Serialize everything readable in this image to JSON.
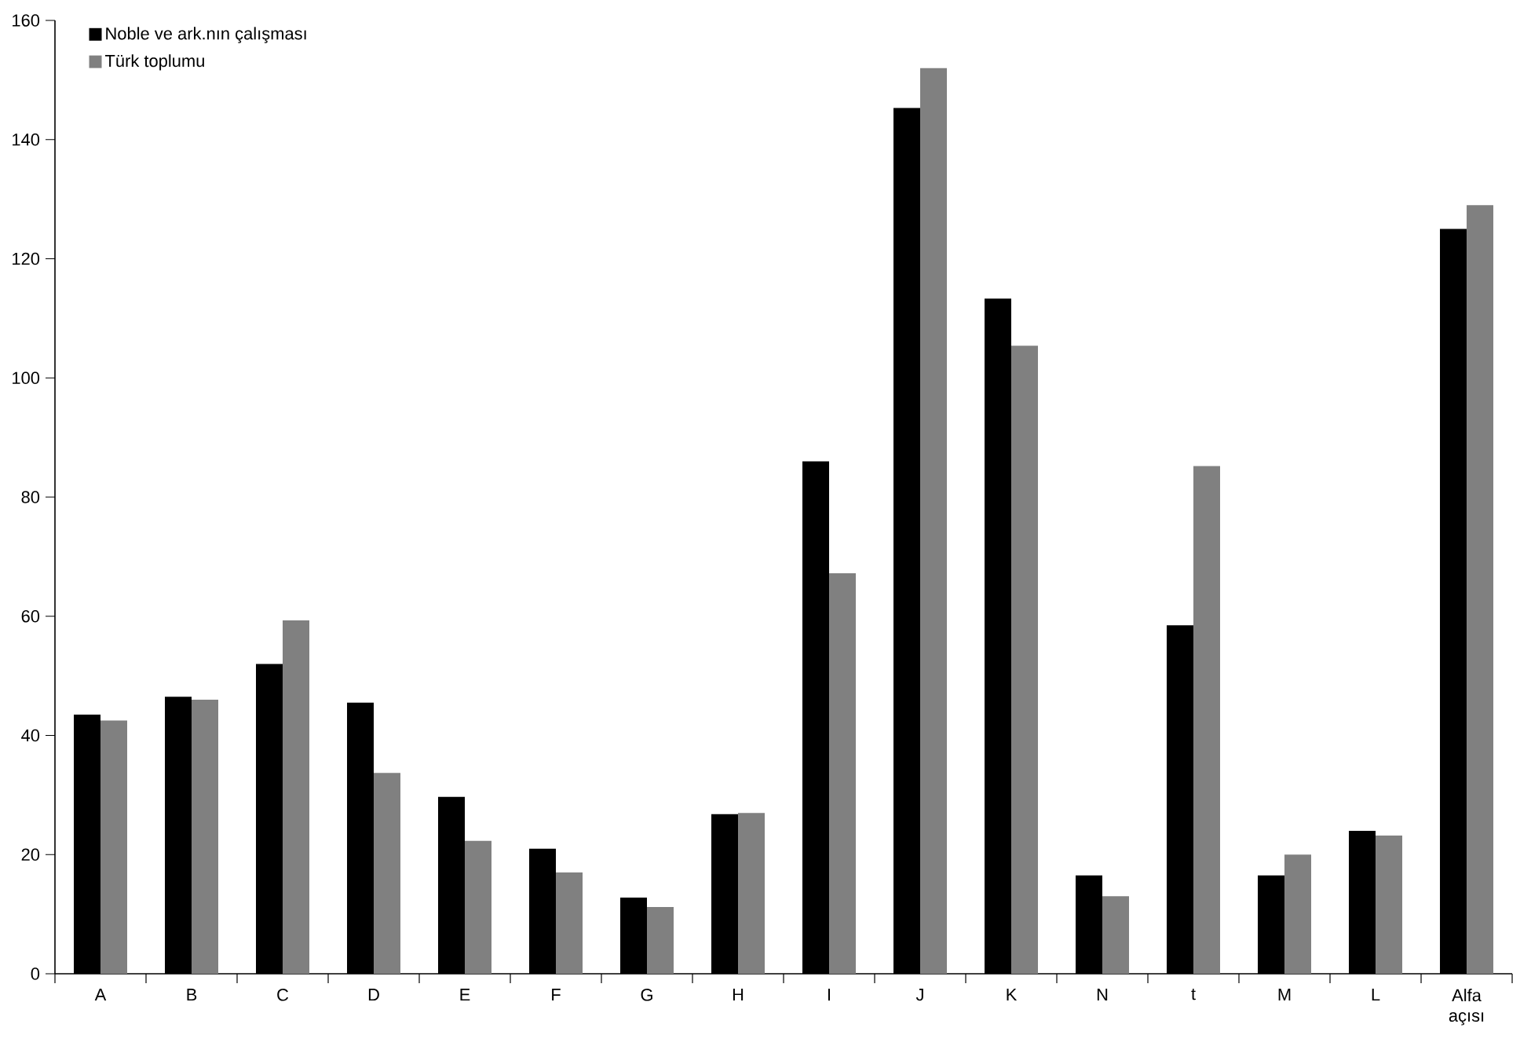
{
  "chart_data": {
    "type": "bar",
    "categories": [
      "A",
      "B",
      "C",
      "D",
      "E",
      "F",
      "G",
      "H",
      "I",
      "J",
      "K",
      "N",
      "t",
      "M",
      "L",
      "Alfa açısı"
    ],
    "series": [
      {
        "name": "Noble ve ark.nın çalışması",
        "color": "#000000",
        "values": [
          43.5,
          46.5,
          52,
          45.5,
          29.7,
          21,
          12.8,
          26.8,
          86,
          145.3,
          113.3,
          16.5,
          58.5,
          16.5,
          24,
          125
        ]
      },
      {
        "name": "Türk toplumu",
        "color": "#808080",
        "values": [
          42.5,
          46,
          59.3,
          33.7,
          22.3,
          17,
          11.2,
          27,
          67.2,
          152,
          105.4,
          13,
          85.2,
          20,
          23.2,
          129
        ]
      }
    ],
    "ylim": [
      0,
      160
    ],
    "yticks": [
      0,
      20,
      40,
      60,
      80,
      100,
      120,
      140,
      160
    ],
    "grid": false,
    "legend": "top left"
  }
}
